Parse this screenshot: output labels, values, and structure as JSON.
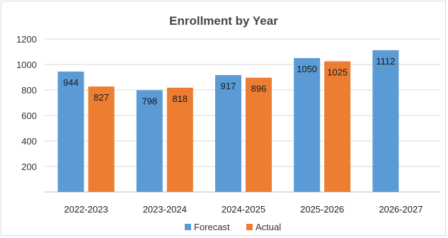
{
  "chart_data": {
    "type": "bar",
    "title": "Enrollment by Year",
    "xlabel": "",
    "ylabel": "",
    "categories": [
      "2022-2023",
      "2023-2024",
      "2024-2025",
      "2025-2026",
      "2026-2027"
    ],
    "series": [
      {
        "name": "Forecast",
        "color": "#5b9bd5",
        "values": [
          944,
          798,
          917,
          1050,
          1112
        ]
      },
      {
        "name": "Actual",
        "color": "#ed7d31",
        "values": [
          827,
          818,
          896,
          1025,
          null
        ]
      }
    ],
    "ylim": [
      0,
      1200
    ],
    "yticks": [
      200,
      400,
      600,
      800,
      1000,
      1200
    ],
    "grid": true,
    "legend_position": "bottom",
    "data_labels": true
  }
}
